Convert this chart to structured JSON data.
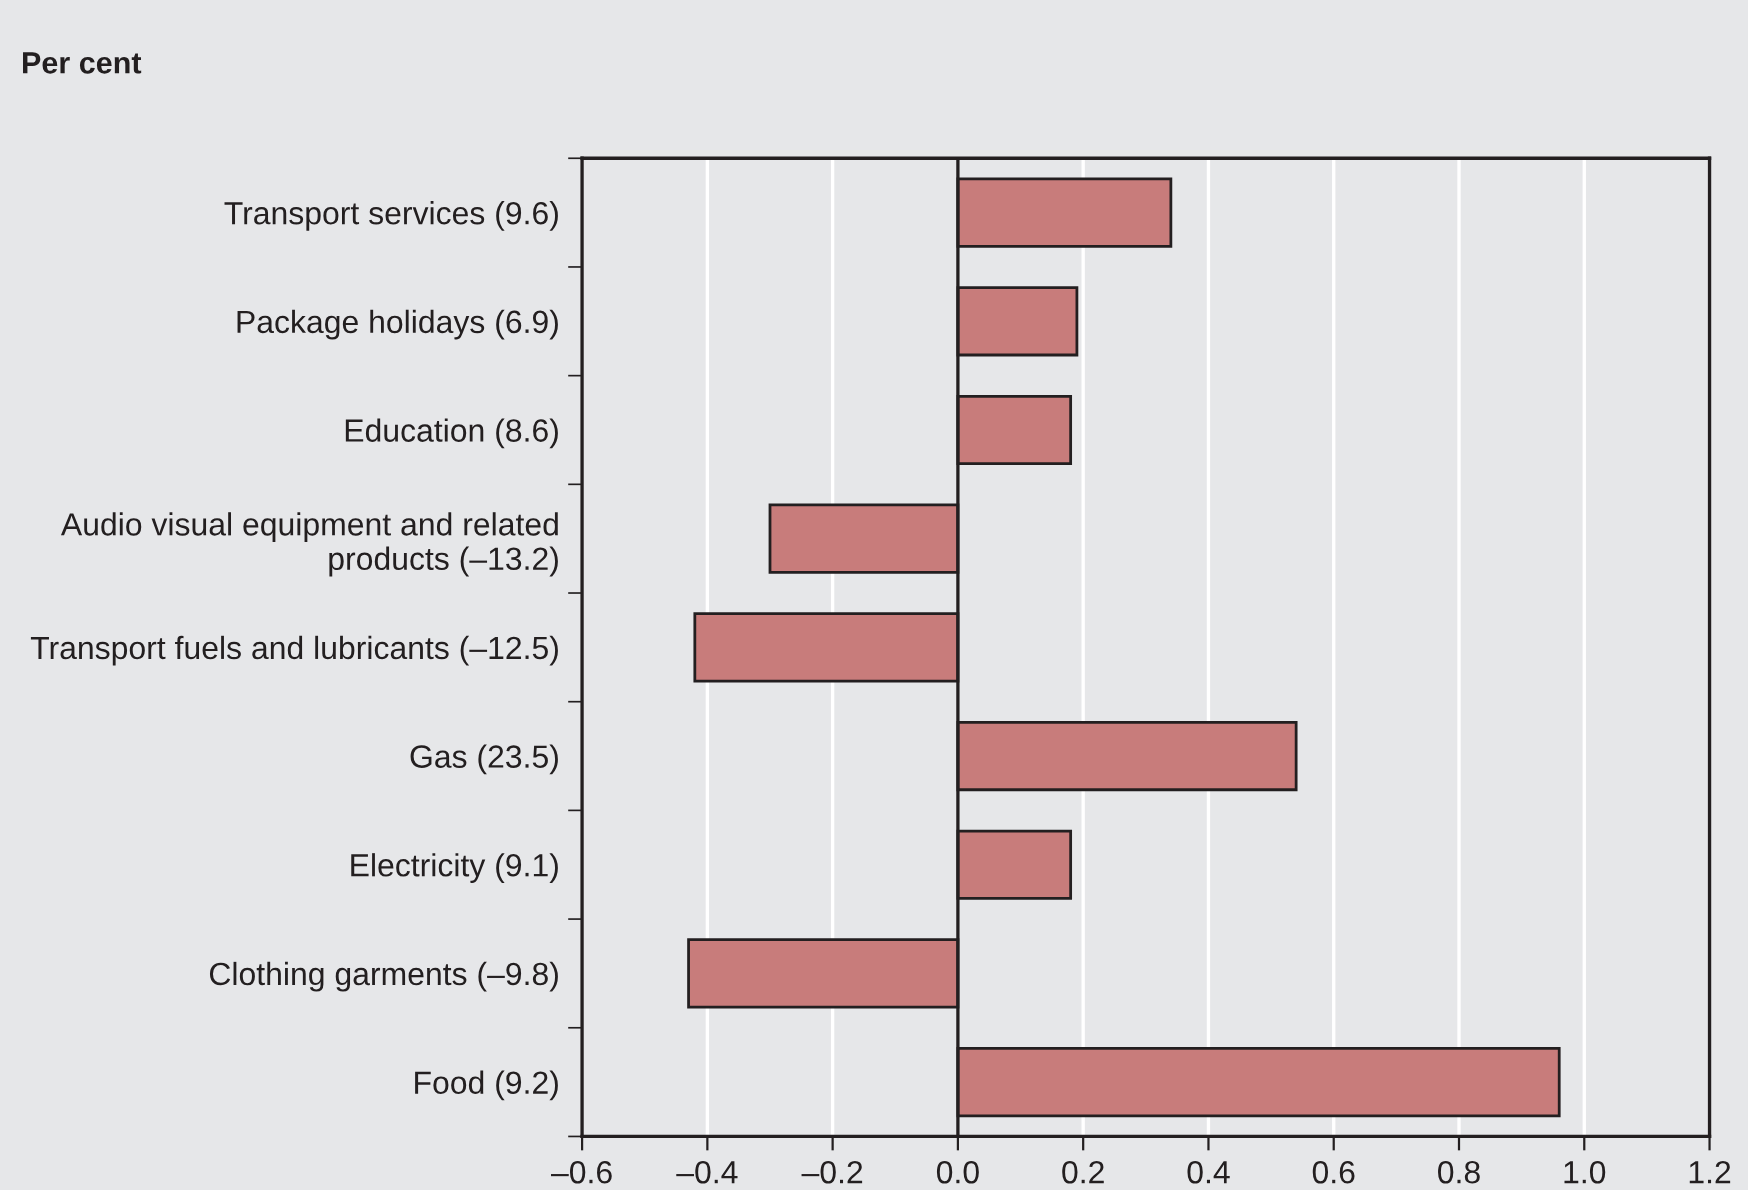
{
  "chart_data": {
    "type": "bar",
    "orientation": "horizontal",
    "xlabel": "Per cent",
    "categories": [
      "Transport services (9.6)",
      "Package holidays (6.9)",
      "Education (8.6)",
      "Audio visual equipment and related\nproducts (–13.2)",
      "Transport fuels and lubricants (–12.5)",
      "Gas (23.5)",
      "Electricity (9.1)",
      "Clothing garments (–9.8)",
      "Food (9.2)"
    ],
    "values": [
      0.34,
      0.19,
      0.18,
      -0.3,
      -0.42,
      0.54,
      0.18,
      -0.43,
      0.96
    ],
    "color": "#c87c7b",
    "xlim": [
      -0.6,
      1.2
    ],
    "xticks": [
      {
        "value": -0.6,
        "label": "–0.6"
      },
      {
        "value": -0.4,
        "label": "–0.4"
      },
      {
        "value": -0.2,
        "label": "–0.2"
      },
      {
        "value": 0,
        "label": "0.0"
      },
      {
        "value": 0.2,
        "label": "0.2"
      },
      {
        "value": 0.4,
        "label": "0.4"
      },
      {
        "value": 0.6,
        "label": "0.6"
      },
      {
        "value": 0.8,
        "label": "0.8"
      },
      {
        "value": 1.0,
        "label": "1.0"
      },
      {
        "value": 1.2,
        "label": "1.2"
      }
    ],
    "grid": "x",
    "ref_lines": [
      {
        "axis": "x",
        "value": 0,
        "color": "#231f20"
      }
    ]
  }
}
